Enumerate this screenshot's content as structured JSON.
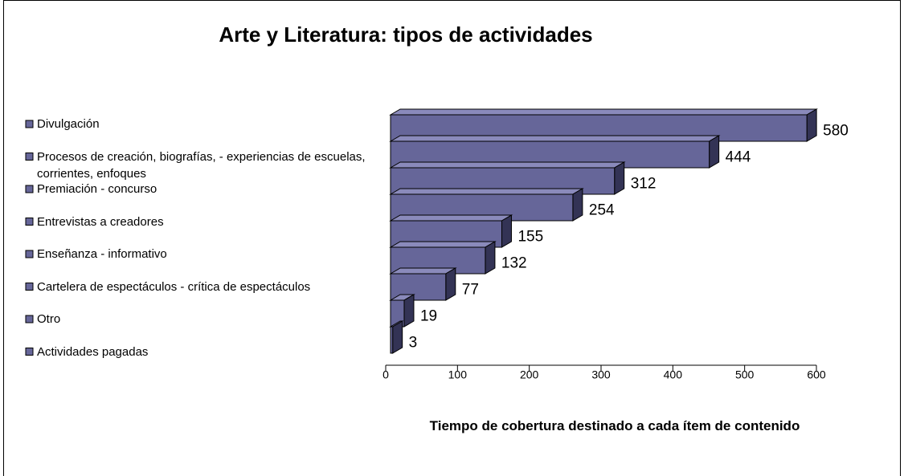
{
  "chart_data": {
    "type": "bar3d_horizontal",
    "title": "Arte y Literatura: tipos de actividades",
    "categories": [
      "Divulgación",
      "Procesos de creación, biografías,  - experiencias de escuelas, corrientes, enfoques",
      "Premiación - concurso",
      "Entrevistas a creadores",
      "Enseñanza - informativo",
      "Cartelera de espectáculos - crítica de espectáculos",
      "Otro",
      "Actividades pagadas",
      null
    ],
    "values": [
      580,
      444,
      312,
      254,
      155,
      132,
      77,
      19,
      3
    ],
    "color": "#666699",
    "xlim": [
      0,
      600
    ],
    "xticks": [
      0,
      100,
      200,
      300,
      400,
      500,
      600
    ],
    "x_label": "Tiempo de  cobertura destinado a cada ítem de contenido",
    "legend": "left"
  }
}
